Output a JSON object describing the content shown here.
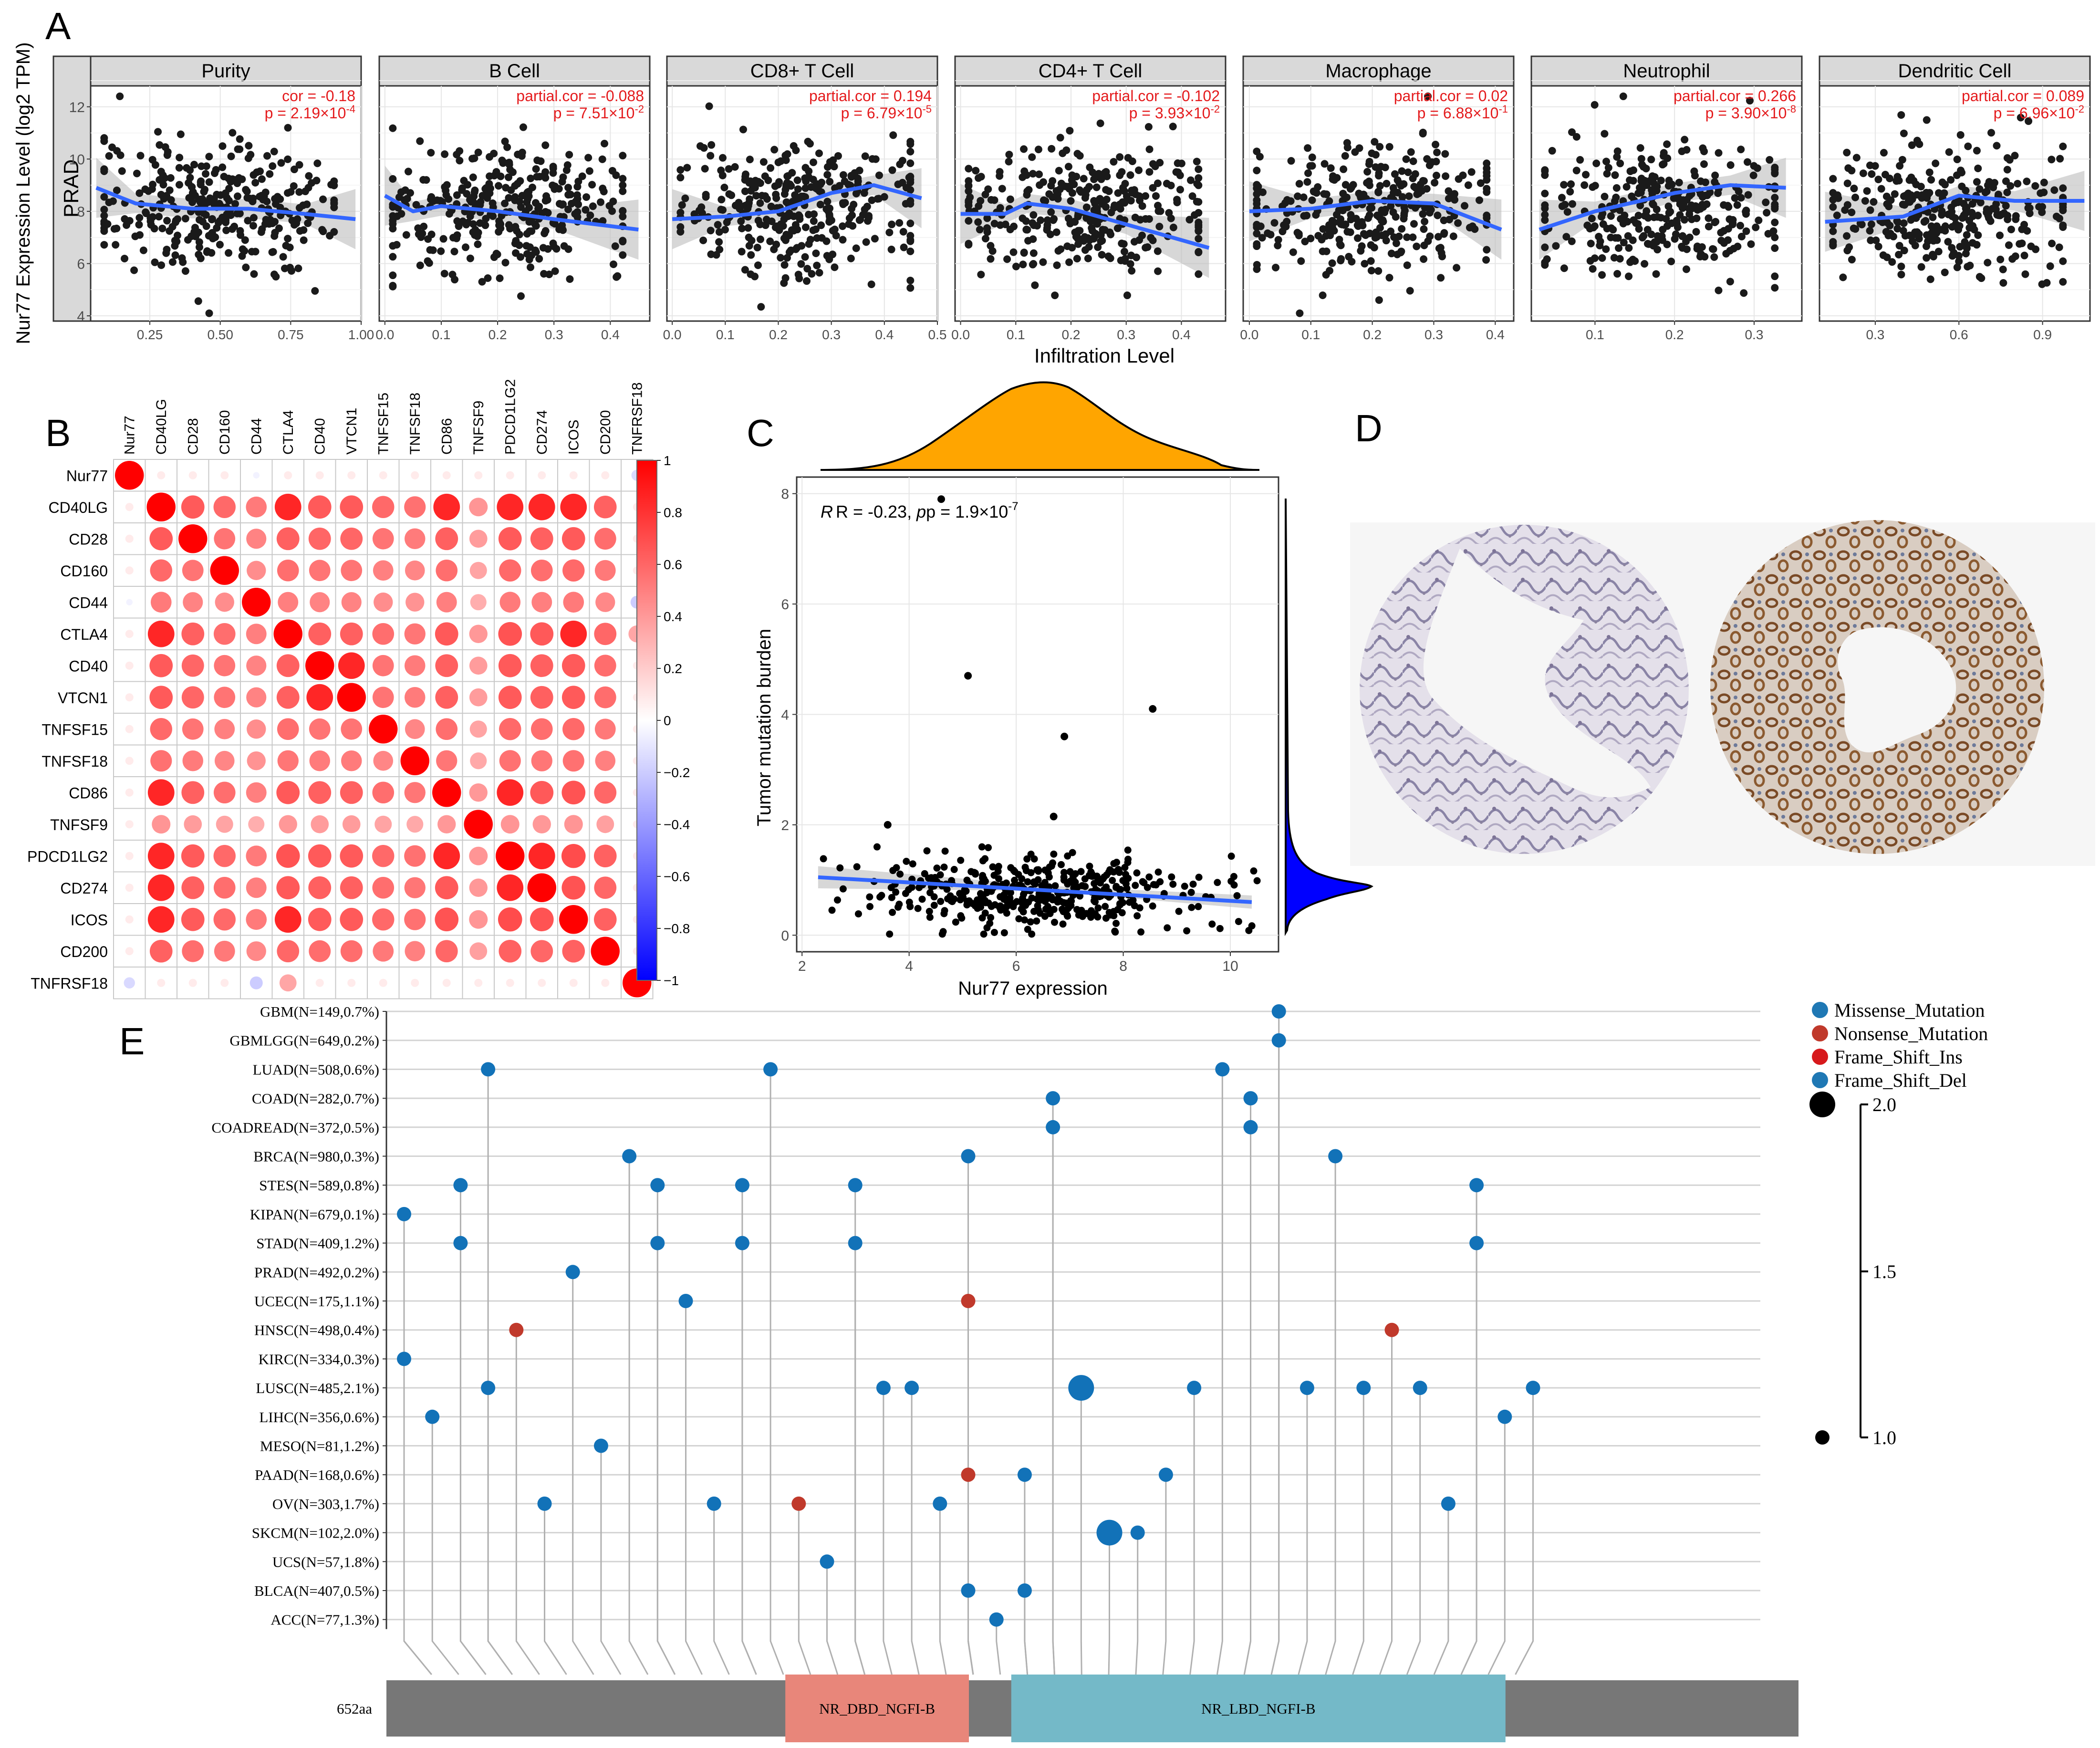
{
  "panel_labels": {
    "A": "A",
    "B": "B",
    "C": "C",
    "D": "D",
    "E": "E"
  },
  "chart_data": [
    {
      "type": "scatter",
      "panel": "A",
      "ylabel": "Nur77 Expression Level (log2 TPM)",
      "xlabel": "Infiltration Level",
      "row_label": "PRAD",
      "ylim": [
        3.8,
        12.8
      ],
      "yticks": [
        4,
        6,
        8,
        10,
        12
      ],
      "facets": [
        {
          "name": "Purity",
          "stat_line1": "cor = -0.18",
          "stat_line2": "p = 2.19×10",
          "stat_exp": "-4",
          "xlim": [
            0.04,
            1.0
          ],
          "xticks": [
            "0.25",
            "0.50",
            "0.75",
            "1.00"
          ],
          "xtick_vals": [
            0.25,
            0.5,
            0.75,
            1.0
          ],
          "trend": [
            [
              0.06,
              8.9
            ],
            [
              0.2,
              8.3
            ],
            [
              0.4,
              8.1
            ],
            [
              0.6,
              8.1
            ],
            [
              0.8,
              7.9
            ],
            [
              0.98,
              7.7
            ]
          ]
        },
        {
          "name": "B Cell",
          "stat_line1": "partial.cor = -0.088",
          "stat_line2": "p = 7.51×10",
          "stat_exp": "-2",
          "xlim": [
            -0.01,
            0.47
          ],
          "xticks": [
            "0.0",
            "0.1",
            "0.2",
            "0.3",
            "0.4"
          ],
          "xtick_vals": [
            0,
            0.1,
            0.2,
            0.3,
            0.4
          ],
          "trend": [
            [
              0.0,
              8.6
            ],
            [
              0.05,
              8.0
            ],
            [
              0.1,
              8.2
            ],
            [
              0.2,
              8.0
            ],
            [
              0.3,
              7.7
            ],
            [
              0.45,
              7.3
            ]
          ]
        },
        {
          "name": "CD8+ T Cell",
          "stat_line1": "partial.cor = 0.194",
          "stat_line2": "p = 6.79×10",
          "stat_exp": "-5",
          "xlim": [
            -0.01,
            0.5
          ],
          "xticks": [
            "0.0",
            "0.1",
            "0.2",
            "0.3",
            "0.4",
            "0.5"
          ],
          "xtick_vals": [
            0,
            0.1,
            0.2,
            0.3,
            0.4,
            0.5
          ],
          "trend": [
            [
              0.0,
              7.7
            ],
            [
              0.1,
              7.8
            ],
            [
              0.2,
              8.0
            ],
            [
              0.3,
              8.7
            ],
            [
              0.38,
              9.0
            ],
            [
              0.47,
              8.5
            ]
          ]
        },
        {
          "name": "CD4+ T Cell",
          "stat_line1": "partial.cor = -0.102",
          "stat_line2": "p = 3.93×10",
          "stat_exp": "-2",
          "xlim": [
            -0.01,
            0.48
          ],
          "xticks": [
            "0.0",
            "0.1",
            "0.2",
            "0.3",
            "0.4"
          ],
          "xtick_vals": [
            0,
            0.1,
            0.2,
            0.3,
            0.4
          ],
          "trend": [
            [
              0.0,
              7.9
            ],
            [
              0.08,
              7.9
            ],
            [
              0.12,
              8.3
            ],
            [
              0.2,
              8.1
            ],
            [
              0.3,
              7.5
            ],
            [
              0.45,
              6.6
            ]
          ]
        },
        {
          "name": "Macrophage",
          "stat_line1": "partial.cor = 0.02",
          "stat_line2": "p = 6.88×10",
          "stat_exp": "-1",
          "xlim": [
            -0.01,
            0.43
          ],
          "xticks": [
            "0.0",
            "0.1",
            "0.2",
            "0.3",
            "0.4"
          ],
          "xtick_vals": [
            0,
            0.1,
            0.2,
            0.3,
            0.4
          ],
          "trend": [
            [
              0.0,
              8.0
            ],
            [
              0.1,
              8.1
            ],
            [
              0.2,
              8.4
            ],
            [
              0.3,
              8.3
            ],
            [
              0.41,
              7.3
            ]
          ]
        },
        {
          "name": "Neutrophil",
          "stat_line1": "partial.cor = 0.266",
          "stat_line2": "p = 3.90×10",
          "stat_exp": "-8",
          "xlim": [
            0.02,
            0.36
          ],
          "xticks": [
            "0.1",
            "0.2",
            "0.3"
          ],
          "xtick_vals": [
            0.1,
            0.2,
            0.3
          ],
          "trend": [
            [
              0.03,
              7.3
            ],
            [
              0.1,
              8.0
            ],
            [
              0.2,
              8.7
            ],
            [
              0.27,
              9.0
            ],
            [
              0.34,
              8.9
            ]
          ]
        },
        {
          "name": "Dendritic Cell",
          "stat_line1": "partial.cor = 0.089",
          "stat_line2": "p = 6.96×10",
          "stat_exp": "-2",
          "xlim": [
            0.1,
            1.07
          ],
          "xticks": [
            "0.3",
            "0.6",
            "0.9"
          ],
          "xtick_vals": [
            0.3,
            0.6,
            0.9
          ],
          "trend": [
            [
              0.12,
              7.6
            ],
            [
              0.4,
              7.8
            ],
            [
              0.6,
              8.6
            ],
            [
              0.8,
              8.4
            ],
            [
              1.05,
              8.4
            ]
          ]
        }
      ]
    },
    {
      "type": "heatmap",
      "panel": "B",
      "genes": [
        "Nur77",
        "CD40LG",
        "CD28",
        "CD160",
        "CD44",
        "CTLA4",
        "CD40",
        "VTCN1",
        "TNFSF15",
        "TNFSF18",
        "CD86",
        "TNFSF9",
        "PDCD1LG2",
        "CD274",
        "ICOS",
        "CD200",
        "TNFRSF18"
      ],
      "colorbar_ticks": [
        "1",
        "0.8",
        "0.6",
        "0.4",
        "0.2",
        "0",
        "−0.2",
        "−0.4",
        "−0.6",
        "−0.8",
        "−1"
      ],
      "colorbar_vals": [
        1,
        0.8,
        0.6,
        0.4,
        0.2,
        0,
        -0.2,
        -0.4,
        -0.6,
        -0.8,
        -1
      ]
    },
    {
      "type": "scatter",
      "panel": "C",
      "xlabel": "Nur77 expression",
      "ylabel": "Tumor mutation burden",
      "annotation_R": "R = -0.23,",
      "annotation_p": "p = 1.9×10",
      "annotation_exp": "-7",
      "xlim": [
        1.9,
        10.9
      ],
      "ylim": [
        -0.3,
        8.3
      ],
      "xticks": [
        2,
        4,
        6,
        8,
        10
      ],
      "yticks": [
        0,
        2,
        4,
        6,
        8
      ],
      "trend": [
        [
          2.3,
          1.05
        ],
        [
          10.4,
          0.6
        ]
      ],
      "outliers": [
        [
          4.6,
          7.9
        ],
        [
          5.1,
          4.7
        ],
        [
          6.9,
          3.6
        ],
        [
          8.55,
          4.1
        ],
        [
          3.6,
          2.0
        ],
        [
          6.7,
          2.15
        ]
      ]
    },
    {
      "type": "lollipop",
      "panel": "E",
      "rows": [
        "GBM(N=149,0.7%)",
        "GBMLGG(N=649,0.2%)",
        "LUAD(N=508,0.6%)",
        "COAD(N=282,0.7%)",
        "COADREAD(N=372,0.5%)",
        "BRCA(N=980,0.3%)",
        "STES(N=589,0.8%)",
        "KIPAN(N=679,0.1%)",
        "STAD(N=409,1.2%)",
        "PRAD(N=492,0.2%)",
        "UCEC(N=175,1.1%)",
        "HNSC(N=498,0.4%)",
        "KIRC(N=334,0.3%)",
        "LUSC(N=485,2.1%)",
        "LIHC(N=356,0.6%)",
        "MESO(N=81,1.2%)",
        "PAAD(N=168,0.6%)",
        "OV(N=303,1.7%)",
        "SKCM(N=102,2.0%)",
        "UCS(N=57,1.8%)",
        "BLCA(N=407,0.5%)",
        "ACC(N=77,1.3%)"
      ],
      "legend": [
        "Missense_Mutation",
        "Nonsense_Mutation",
        "Frame_Shift_Ins",
        "Frame_Shift_Del"
      ],
      "legend_colors": [
        "#1f78b4",
        "#c0392b",
        "#d7191c",
        "#1f78b4"
      ],
      "size_ticks": [
        "2.0",
        "1.5",
        "1.0"
      ],
      "protein_length_label": "652aa",
      "domains": [
        {
          "name": "NR_DBD_NGFI-B",
          "color": "#e8867a",
          "start_frac": 0.2825,
          "end_frac": 0.4125
        },
        {
          "name": "NR_LBD_NGFI-B",
          "color": "#74b9c8",
          "start_frac": 0.4425,
          "end_frac": 0.7925
        }
      ],
      "mutations": [
        {
          "row": 7,
          "x": 0.0125,
          "type": "missense",
          "size": 1
        },
        {
          "row": 12,
          "x": 0.0125,
          "type": "missense",
          "size": 1
        },
        {
          "row": 14,
          "x": 0.0325,
          "type": "missense",
          "size": 1
        },
        {
          "row": 6,
          "x": 0.0525,
          "type": "missense",
          "size": 1
        },
        {
          "row": 8,
          "x": 0.0525,
          "type": "missense",
          "size": 1
        },
        {
          "row": 2,
          "x": 0.072,
          "type": "missense",
          "size": 1
        },
        {
          "row": 13,
          "x": 0.072,
          "type": "missense",
          "size": 1
        },
        {
          "row": 11,
          "x": 0.092,
          "type": "nonsense",
          "size": 1
        },
        {
          "row": 17,
          "x": 0.112,
          "type": "missense",
          "size": 1
        },
        {
          "row": 9,
          "x": 0.132,
          "type": "missense",
          "size": 1
        },
        {
          "row": 15,
          "x": 0.152,
          "type": "missense",
          "size": 1
        },
        {
          "row": 5,
          "x": 0.172,
          "type": "missense",
          "size": 1
        },
        {
          "row": 6,
          "x": 0.192,
          "type": "missense",
          "size": 1
        },
        {
          "row": 8,
          "x": 0.192,
          "type": "missense",
          "size": 1
        },
        {
          "row": 10,
          "x": 0.212,
          "type": "missense",
          "size": 1
        },
        {
          "row": 17,
          "x": 0.232,
          "type": "missense",
          "size": 1
        },
        {
          "row": 6,
          "x": 0.252,
          "type": "missense",
          "size": 1
        },
        {
          "row": 8,
          "x": 0.252,
          "type": "missense",
          "size": 1
        },
        {
          "row": 2,
          "x": 0.272,
          "type": "missense",
          "size": 1
        },
        {
          "row": 17,
          "x": 0.292,
          "type": "nonsense",
          "size": 1
        },
        {
          "row": 19,
          "x": 0.312,
          "type": "missense",
          "size": 1
        },
        {
          "row": 6,
          "x": 0.332,
          "type": "missense",
          "size": 1
        },
        {
          "row": 8,
          "x": 0.332,
          "type": "missense",
          "size": 1
        },
        {
          "row": 13,
          "x": 0.352,
          "type": "missense",
          "size": 1
        },
        {
          "row": 13,
          "x": 0.372,
          "type": "missense",
          "size": 1
        },
        {
          "row": 17,
          "x": 0.392,
          "type": "missense",
          "size": 1
        },
        {
          "row": 5,
          "x": 0.412,
          "type": "missense",
          "size": 1
        },
        {
          "row": 10,
          "x": 0.412,
          "type": "nonsense",
          "size": 1
        },
        {
          "row": 16,
          "x": 0.412,
          "type": "nonsense",
          "size": 1
        },
        {
          "row": 20,
          "x": 0.412,
          "type": "missense",
          "size": 1
        },
        {
          "row": 21,
          "x": 0.432,
          "type": "missense",
          "size": 1
        },
        {
          "row": 16,
          "x": 0.452,
          "type": "missense",
          "size": 1
        },
        {
          "row": 20,
          "x": 0.452,
          "type": "missense",
          "size": 1
        },
        {
          "row": 3,
          "x": 0.472,
          "type": "missense",
          "size": 1
        },
        {
          "row": 4,
          "x": 0.472,
          "type": "missense",
          "size": 1
        },
        {
          "row": 13,
          "x": 0.492,
          "type": "missense",
          "size": 2
        },
        {
          "row": 18,
          "x": 0.512,
          "type": "missense",
          "size": 2
        },
        {
          "row": 18,
          "x": 0.532,
          "type": "missense",
          "size": 1
        },
        {
          "row": 16,
          "x": 0.552,
          "type": "missense",
          "size": 1
        },
        {
          "row": 13,
          "x": 0.572,
          "type": "missense",
          "size": 1
        },
        {
          "row": 2,
          "x": 0.592,
          "type": "missense",
          "size": 1
        },
        {
          "row": 3,
          "x": 0.612,
          "type": "missense",
          "size": 1
        },
        {
          "row": 4,
          "x": 0.612,
          "type": "missense",
          "size": 1
        },
        {
          "row": 0,
          "x": 0.632,
          "type": "missense",
          "size": 1
        },
        {
          "row": 1,
          "x": 0.632,
          "type": "missense",
          "size": 1
        },
        {
          "row": 13,
          "x": 0.652,
          "type": "missense",
          "size": 1
        },
        {
          "row": 5,
          "x": 0.672,
          "type": "missense",
          "size": 1
        },
        {
          "row": 13,
          "x": 0.692,
          "type": "missense",
          "size": 1
        },
        {
          "row": 11,
          "x": 0.712,
          "type": "nonsense",
          "size": 1
        },
        {
          "row": 13,
          "x": 0.732,
          "type": "missense",
          "size": 1
        },
        {
          "row": 17,
          "x": 0.752,
          "type": "missense",
          "size": 1
        },
        {
          "row": 6,
          "x": 0.772,
          "type": "missense",
          "size": 1
        },
        {
          "row": 8,
          "x": 0.772,
          "type": "missense",
          "size": 1
        },
        {
          "row": 14,
          "x": 0.792,
          "type": "missense",
          "size": 1
        },
        {
          "row": 13,
          "x": 0.812,
          "type": "missense",
          "size": 1
        }
      ]
    }
  ]
}
